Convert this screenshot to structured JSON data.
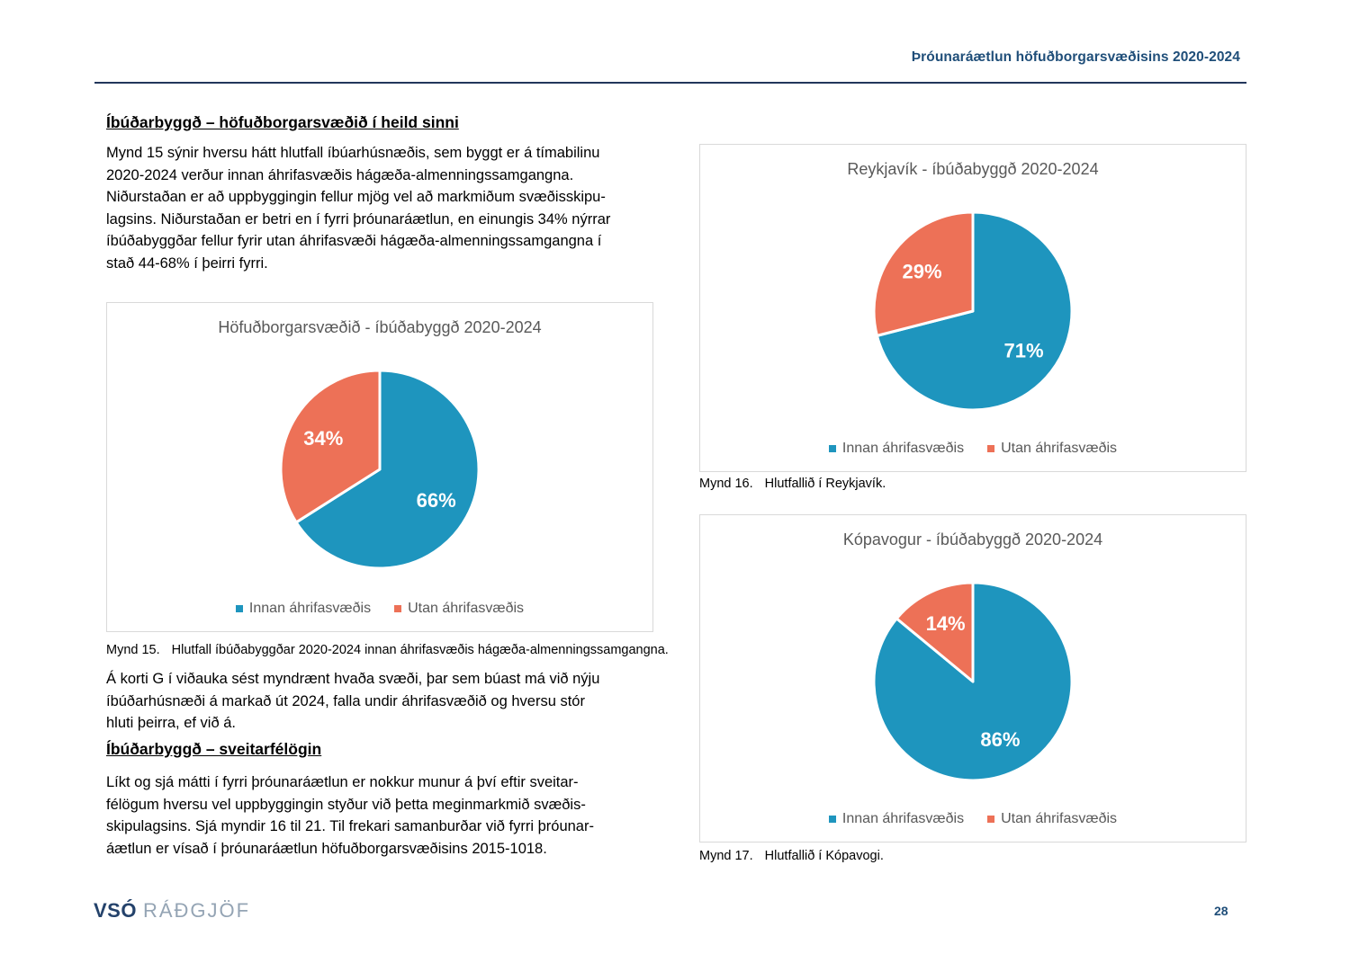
{
  "header": {
    "title": "Þróunaráætlun höfuðborgarsvæðisins 2020-2024"
  },
  "left_column": {
    "heading1": "Íbúðarbyggð – höfuðborgarsvæðið í heild sinni",
    "paragraph1": [
      "Mynd 15 sýnir hversu hátt hlutfall íbúarhúsnæðis, sem byggt er á tímabilinu",
      "2020-2024 verður innan áhrifasvæðis hágæða-almenningssamgangna.",
      "Niðurstaðan er að uppbyggingin fellur mjög vel að markmiðum svæðisskipu-",
      "lagsins. Niðurstaðan er betri en í fyrri þróunaráætlun, en einungis 34% nýrrar",
      "íbúðabyggðar fellur fyrir utan áhrifasvæði hágæða-almenningssamgangna í",
      "stað 44-68% í þeirri fyrri."
    ],
    "paragraph2": [
      "Á korti G í viðauka sést myndrænt hvaða svæði, þar sem búast má við nýju",
      "íbúðarhúsnæði á markað út 2024, falla undir áhrifasvæðið og hversu stór",
      "hluti þeirra, ef við á."
    ],
    "heading2": "Íbúðarbyggð – sveitarfélögin",
    "paragraph3": [
      "Líkt og sjá mátti í fyrri þróunaráætlun er nokkur munur á því eftir sveitar-",
      "félögum hversu vel uppbyggingin styður við þetta meginmarkmið svæðis-",
      "skipulagsins. Sjá myndir 16 til 21. Til frekari samanburðar við fyrri þróunar-",
      "áætlun er vísað í þróunaráætlun höfuðborgarsvæðisins 2015-1018."
    ]
  },
  "chart_data": [
    {
      "type": "pie",
      "title": "Höfuðborgarsvæðið - íbúðabyggð 2020-2024",
      "labels": [
        "Innan áhrifasvæðis",
        "Utan áhrifasvæðis"
      ],
      "values": [
        66,
        34
      ],
      "data_labels": [
        "66%",
        "34%"
      ],
      "colors": [
        "#1E95BE",
        "#ED7157"
      ],
      "legend_position": "bottom",
      "caption": {
        "number": "Mynd 15.",
        "text": "Hlutfall íbúðabyggðar 2020-2024 innan áhrifasvæðis hágæða-almenningssamgangna."
      }
    },
    {
      "type": "pie",
      "title": "Reykjavík - íbúðabyggð 2020-2024",
      "labels": [
        "Innan áhrifasvæðis",
        "Utan áhrifasvæðis"
      ],
      "values": [
        71,
        29
      ],
      "data_labels": [
        "71%",
        "29%"
      ],
      "colors": [
        "#1E95BE",
        "#ED7157"
      ],
      "legend_position": "bottom",
      "caption": {
        "number": "Mynd 16.",
        "text": "Hlutfallið í Reykjavík."
      }
    },
    {
      "type": "pie",
      "title": "Kópavogur - íbúðabyggð 2020-2024",
      "labels": [
        "Innan áhrifasvæðis",
        "Utan áhrifasvæðis"
      ],
      "values": [
        86,
        14
      ],
      "data_labels": [
        "86%",
        "14%"
      ],
      "colors": [
        "#1E95BE",
        "#ED7157"
      ],
      "legend_position": "bottom",
      "caption": {
        "number": "Mynd 17.",
        "text": "Hlutfallið í Kópavogi."
      }
    }
  ],
  "footer": {
    "logo_bold": "VSÓ",
    "logo_light": "RÁÐGJÖF",
    "page_number": "28"
  },
  "colors": {
    "accent_navy": "#1F4E79",
    "rule_navy": "#22365B",
    "pie_blue": "#1E95BE",
    "pie_orange": "#ED7157",
    "chart_border": "#D9D9D9",
    "chart_text_gray": "#595959",
    "logo_navy": "#24426B",
    "logo_gray_blue": "#94A4B4"
  }
}
